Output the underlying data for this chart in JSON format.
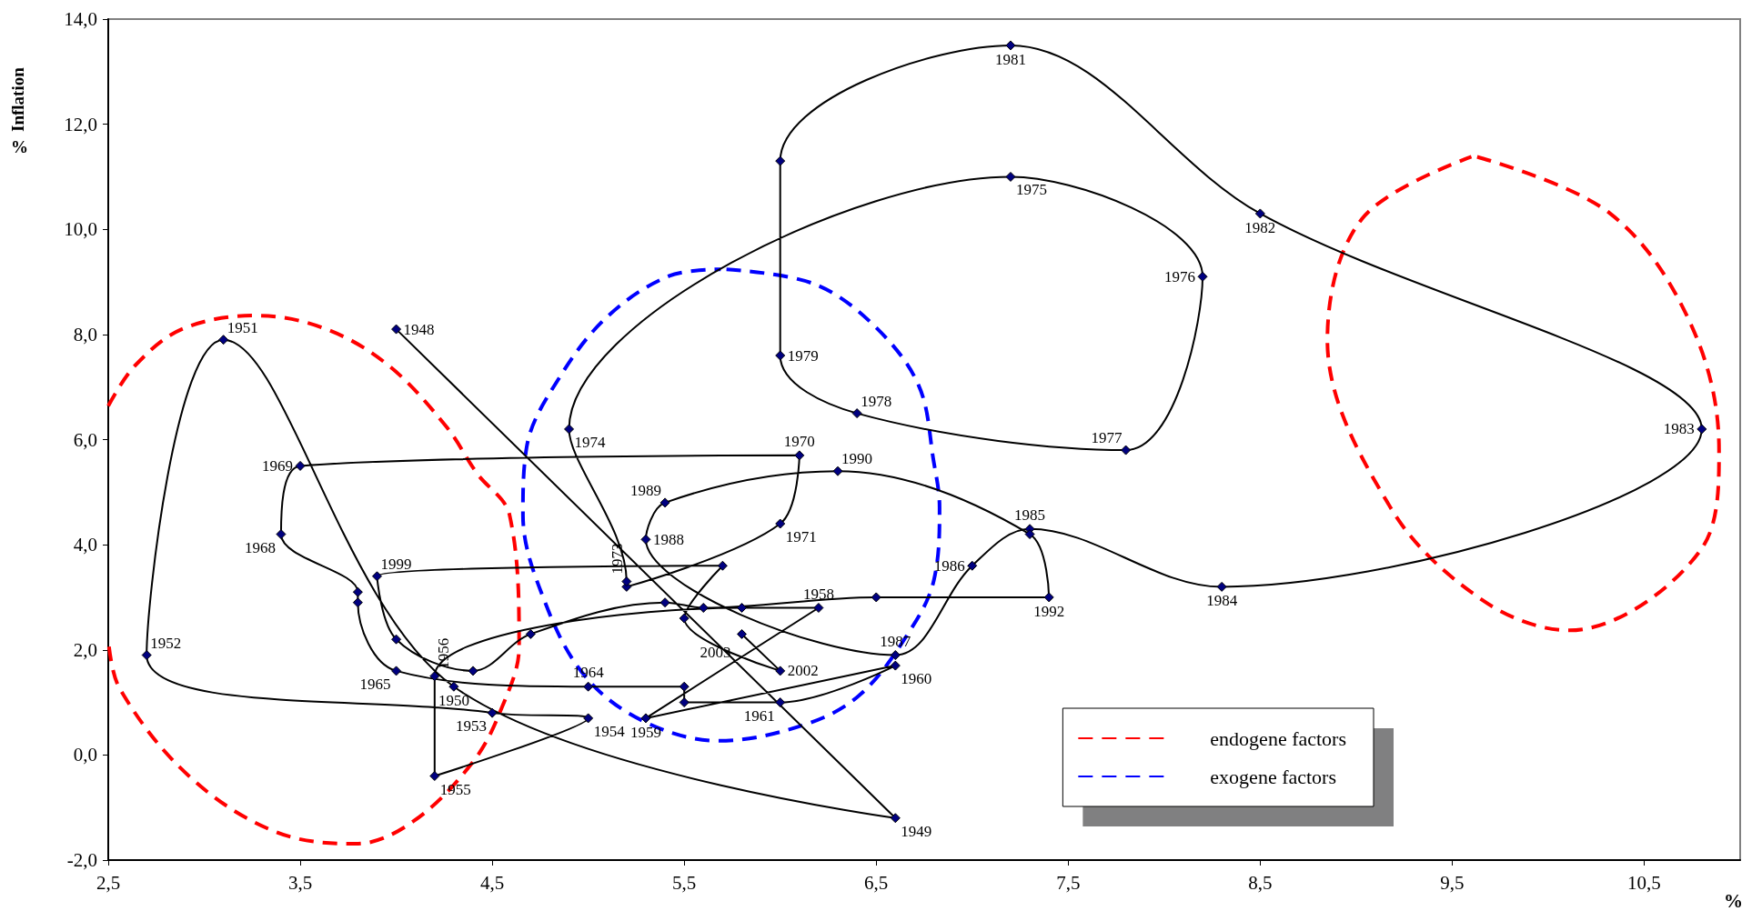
{
  "chart_data": {
    "type": "line",
    "xlabel": "%",
    "ylabel": "Inflation",
    "annotations": [
      "%",
      {
        "text": "1948",
        "x": 4.0,
        "y": 8.1
      },
      {
        "text": "1949",
        "x": 6.6,
        "y": -1.2
      },
      {
        "text": "1950",
        "x": 4.3,
        "y": 1.3
      },
      {
        "text": "1951",
        "x": 3.1,
        "y": 7.9
      },
      {
        "text": "1952",
        "x": 2.7,
        "y": 1.9
      },
      {
        "text": "1953",
        "x": 4.5,
        "y": 0.8
      },
      {
        "text": "1954",
        "x": 5.0,
        "y": 0.7
      },
      {
        "text": "1955",
        "x": 4.2,
        "y": -0.4
      },
      {
        "text": "1956",
        "x": 4.2,
        "y": 1.5
      },
      {
        "text": "1958",
        "x": 6.2,
        "y": 2.8
      },
      {
        "text": "1959",
        "x": 5.3,
        "y": 0.7
      },
      {
        "text": "1960",
        "x": 6.6,
        "y": 1.7
      },
      {
        "text": "1961",
        "x": 6.0,
        "y": 1.0
      },
      {
        "text": "1964",
        "x": 5.0,
        "y": 1.3
      },
      {
        "text": "1965",
        "x": 4.0,
        "y": 1.6
      },
      {
        "text": "1968",
        "x": 3.4,
        "y": 4.2
      },
      {
        "text": "1969",
        "x": 3.5,
        "y": 5.5
      },
      {
        "text": "1970",
        "x": 6.1,
        "y": 5.7
      },
      {
        "text": "1971",
        "x": 6.0,
        "y": 4.4
      },
      {
        "text": "1973",
        "x": 5.2,
        "y": 3.3
      },
      {
        "text": "1974",
        "x": 4.9,
        "y": 6.2
      },
      {
        "text": "1975",
        "x": 7.2,
        "y": 11.0
      },
      {
        "text": "1976",
        "x": 8.2,
        "y": 9.1
      },
      {
        "text": "1977",
        "x": 7.8,
        "y": 5.8
      },
      {
        "text": "1978",
        "x": 6.4,
        "y": 6.5
      },
      {
        "text": "1979",
        "x": 6.0,
        "y": 7.6
      },
      {
        "text": "1981",
        "x": 7.2,
        "y": 13.5
      },
      {
        "text": "1982",
        "x": 8.5,
        "y": 10.3
      },
      {
        "text": "1983",
        "x": 10.8,
        "y": 6.2
      },
      {
        "text": "1984",
        "x": 8.3,
        "y": 3.2
      },
      {
        "text": "1985",
        "x": 7.3,
        "y": 4.3
      },
      {
        "text": "1986",
        "x": 7.0,
        "y": 3.6
      },
      {
        "text": "1987",
        "x": 6.6,
        "y": 1.9
      },
      {
        "text": "1988",
        "x": 5.3,
        "y": 4.1
      },
      {
        "text": "1989",
        "x": 5.4,
        "y": 4.8
      },
      {
        "text": "1990",
        "x": 6.3,
        "y": 5.4
      },
      {
        "text": "1992",
        "x": 7.4,
        "y": 3.0
      },
      {
        "text": "1999",
        "x": 3.9,
        "y": 3.4
      },
      {
        "text": "2002",
        "x": 6.0,
        "y": 1.6
      },
      {
        "text": "2003",
        "x": 5.8,
        "y": 2.3
      }
    ],
    "xlim": [
      2.5,
      11.0
    ],
    "ylim": [
      -2,
      14
    ],
    "xticks": [
      {
        "value": 2.5,
        "label": "2,5"
      },
      {
        "value": 3.5,
        "label": "3,5"
      },
      {
        "value": 4.5,
        "label": "4,5"
      },
      {
        "value": 5.5,
        "label": "5,5"
      },
      {
        "value": 6.5,
        "label": "6,5"
      },
      {
        "value": 7.5,
        "label": "7,5"
      },
      {
        "value": 8.5,
        "label": "8,5"
      },
      {
        "value": 9.5,
        "label": "9,5"
      },
      {
        "value": 10.5,
        "label": "10,5"
      }
    ],
    "yticks": [
      {
        "value": -2,
        "label": "-2,0"
      },
      {
        "value": 0,
        "label": "0,0"
      },
      {
        "value": 2,
        "label": "2,0"
      },
      {
        "value": 4,
        "label": "4,0"
      },
      {
        "value": 6,
        "label": "6,0"
      },
      {
        "value": 8,
        "label": "8,0"
      },
      {
        "value": 10,
        "label": "10,0"
      },
      {
        "value": 12,
        "label": "12,0"
      },
      {
        "value": 14,
        "label": "14,0"
      }
    ],
    "legend": "bottom right",
    "grid": false,
    "series": [
      {
        "color": "#000000",
        "marker": "diamond",
        "line_style": "solid",
        "x": [
          4.0,
          6.6,
          4.3,
          3.1,
          2.7,
          4.5,
          5.0,
          4.2,
          4.2,
          5.8,
          6.2,
          5.3,
          6.6,
          6.0,
          5.5,
          5.5,
          5.0,
          4.0,
          3.8,
          3.8,
          3.4,
          3.5,
          6.1,
          6.0,
          5.2,
          5.2,
          4.9,
          7.2,
          8.2,
          7.8,
          6.4,
          6.0,
          6.0,
          7.2,
          8.5,
          10.8,
          8.3,
          7.3,
          7.0,
          6.6,
          5.3,
          5.4,
          6.3,
          7.3,
          7.4,
          6.5,
          5.6,
          5.4,
          4.7,
          4.4,
          4.0,
          3.9,
          5.7,
          5.5,
          6.0,
          5.8
        ],
        "values": [
          8.1,
          -1.2,
          1.3,
          7.9,
          1.9,
          0.8,
          0.7,
          -0.4,
          1.5,
          2.8,
          2.8,
          0.7,
          1.7,
          1.0,
          1.0,
          1.3,
          1.3,
          1.6,
          2.9,
          3.1,
          4.2,
          5.5,
          5.7,
          4.4,
          3.2,
          3.3,
          6.2,
          11.0,
          9.1,
          5.8,
          6.5,
          7.6,
          11.3,
          13.5,
          10.3,
          6.2,
          3.2,
          4.3,
          3.6,
          1.9,
          4.1,
          4.8,
          5.4,
          4.2,
          3.0,
          3.0,
          2.8,
          2.9,
          2.3,
          1.6,
          2.2,
          3.4,
          3.6,
          2.6,
          1.6,
          2.3
        ]
      },
      {
        "name": "endogene factors",
        "color": "#ff0000",
        "marker": "none",
        "line_style": "dashed",
        "x": [
          2.5,
          2.64,
          2.89,
          3.27,
          3.63,
          3.96,
          4.26,
          4.42,
          4.59,
          4.64,
          4.55,
          4.4,
          4.09,
          3.79,
          3.37,
          2.92,
          2.56,
          2.5
        ],
        "values": [
          6.64,
          7.41,
          8.11,
          8.36,
          8.11,
          7.41,
          6.25,
          5.36,
          4.57,
          2.05,
          0.9,
          -0.13,
          -1.26,
          -1.69,
          -1.46,
          -0.4,
          1.26,
          2.2
        ]
      },
      {
        "color": "#ff0000",
        "marker": "none",
        "line_style": "dashed",
        "x": [
          9.63,
          10.32,
          10.74,
          10.89,
          10.8,
          10.11,
          9.66,
          9.18,
          8.85,
          9.03,
          9.6
        ],
        "values": [
          11.38,
          10.31,
          8.22,
          5.8,
          3.93,
          2.37,
          2.94,
          4.7,
          7.89,
          10.2,
          11.38
        ]
      },
      {
        "name": "exogene factors",
        "color": "#0000ff",
        "marker": "none",
        "line_style": "dashed",
        "x": [
          5.72,
          6.17,
          6.48,
          6.72,
          6.8,
          6.83,
          6.8,
          6.68,
          6.42,
          6.13,
          5.68,
          5.3,
          4.99,
          4.78,
          4.66,
          4.68,
          4.85,
          5.1,
          5.42,
          5.69
        ],
        "values": [
          9.24,
          8.97,
          8.2,
          7.04,
          5.57,
          4.71,
          3.32,
          2.39,
          1.16,
          0.58,
          0.27,
          0.62,
          1.47,
          2.86,
          4.57,
          5.87,
          7.18,
          8.34,
          9.11,
          9.24
        ]
      }
    ]
  }
}
